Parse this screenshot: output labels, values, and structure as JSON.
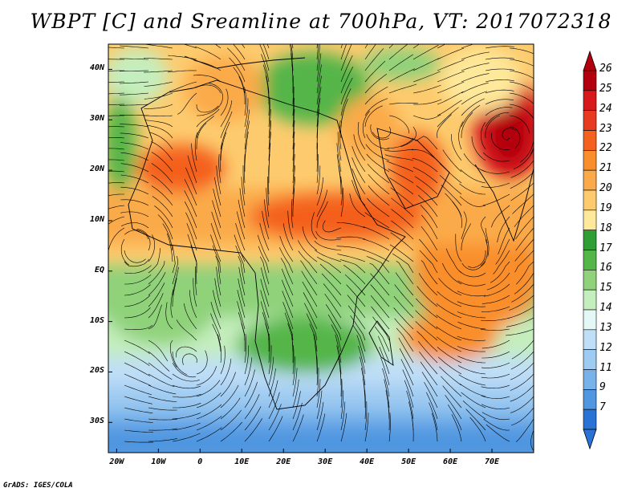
{
  "title": "WBPT [C] and Sreamline at 700hPa, VT: 2017072318",
  "credit": "GrADS: IGES/COLA",
  "lat_labels": [
    "40N",
    "30N",
    "20N",
    "10N",
    "EQ",
    "10S",
    "20S",
    "30S"
  ],
  "lat_values": [
    40,
    30,
    20,
    10,
    0,
    -10,
    -20,
    -30
  ],
  "lon_labels": [
    "20W",
    "10W",
    "0",
    "10E",
    "20E",
    "30E",
    "40E",
    "50E",
    "60E",
    "70E"
  ],
  "lon_values": [
    -20,
    -10,
    0,
    10,
    20,
    30,
    40,
    50,
    60,
    70
  ],
  "extent": {
    "lon_min": -22,
    "lon_max": 80,
    "lat_min": -36,
    "lat_max": 45
  },
  "colorbar": {
    "labels": [
      "26",
      "25",
      "24",
      "23",
      "22",
      "21",
      "20",
      "19",
      "18",
      "17",
      "16",
      "15",
      "14",
      "13",
      "12",
      "11",
      "9",
      "7"
    ],
    "colors": [
      "#b3000e",
      "#d7191c",
      "#e83a21",
      "#f4611f",
      "#f98e2a",
      "#fbaa4a",
      "#fdcb6e",
      "#fee89a",
      "#2f9e35",
      "#54b548",
      "#8fd27a",
      "#c4eebd",
      "#e4f8f8",
      "#bfdef7",
      "#9ecbf1",
      "#78b2ea",
      "#5096e0",
      "#2a73d6"
    ]
  },
  "colors": {
    "land_border": "#000000",
    "streamline": "#000000"
  },
  "fields": {
    "hot_spots": [
      {
        "label": "arabian_sea_vortex",
        "lon": 73,
        "lat": 26,
        "value": 24
      },
      {
        "label": "sahara_west",
        "lon": -5,
        "lat": 20,
        "value": 22.5
      },
      {
        "label": "sahel_east",
        "lon": 30,
        "lat": 11,
        "value": 22.5
      },
      {
        "label": "arabia",
        "lon": 48,
        "lat": 20,
        "value": 23
      },
      {
        "label": "indian_ocean_gyre",
        "lon": 65,
        "lat": 2,
        "value": 22
      }
    ]
  }
}
